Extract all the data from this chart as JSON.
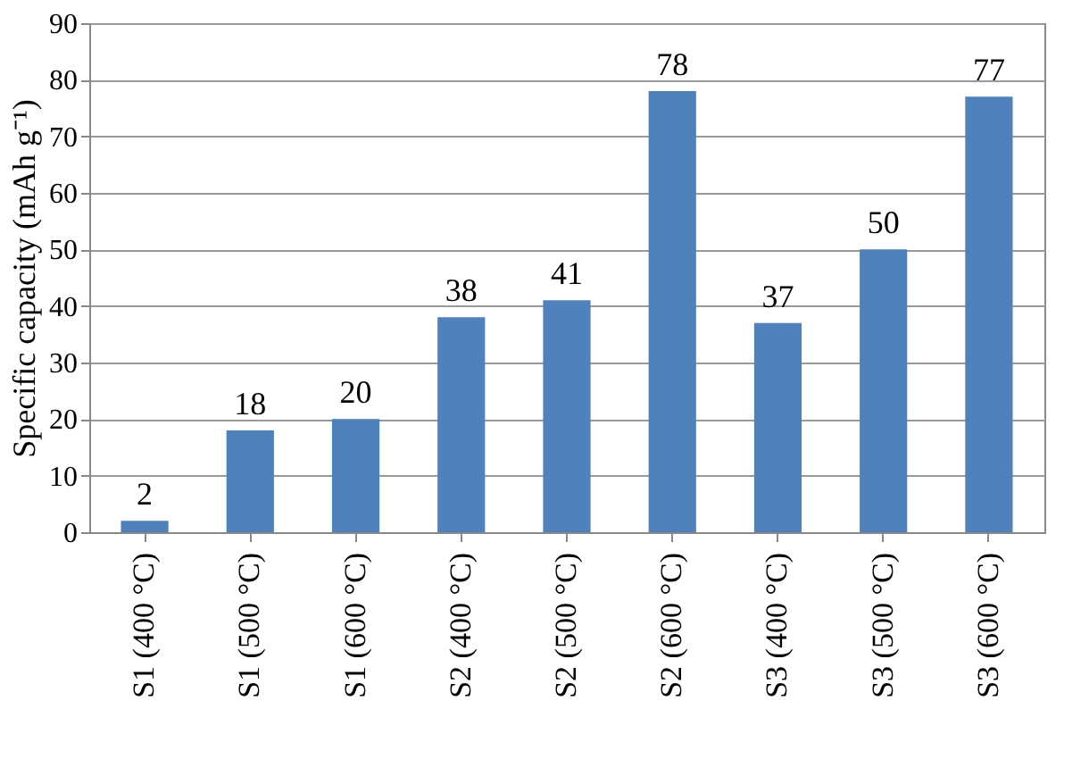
{
  "chart_data": {
    "type": "bar",
    "ylabel": "Specific capacity  (mAh g⁻¹)",
    "categories": [
      "S1 (400 °C)",
      "S1 (500 °C)",
      "S1 (600 °C)",
      "S2 (400 °C)",
      "S2 (500 °C)",
      "S2 (600 °C)",
      "S3 (400 °C)",
      "S3 (500 °C)",
      "S3 (600 °C)"
    ],
    "values": [
      2,
      18,
      20,
      38,
      41,
      78,
      37,
      50,
      77
    ],
    "color": "#4f81bd",
    "ylim": [
      0,
      90
    ],
    "yticks": [
      0,
      10,
      20,
      30,
      40,
      50,
      60,
      70,
      80,
      90
    ],
    "grid": "y",
    "data_labels": true
  }
}
